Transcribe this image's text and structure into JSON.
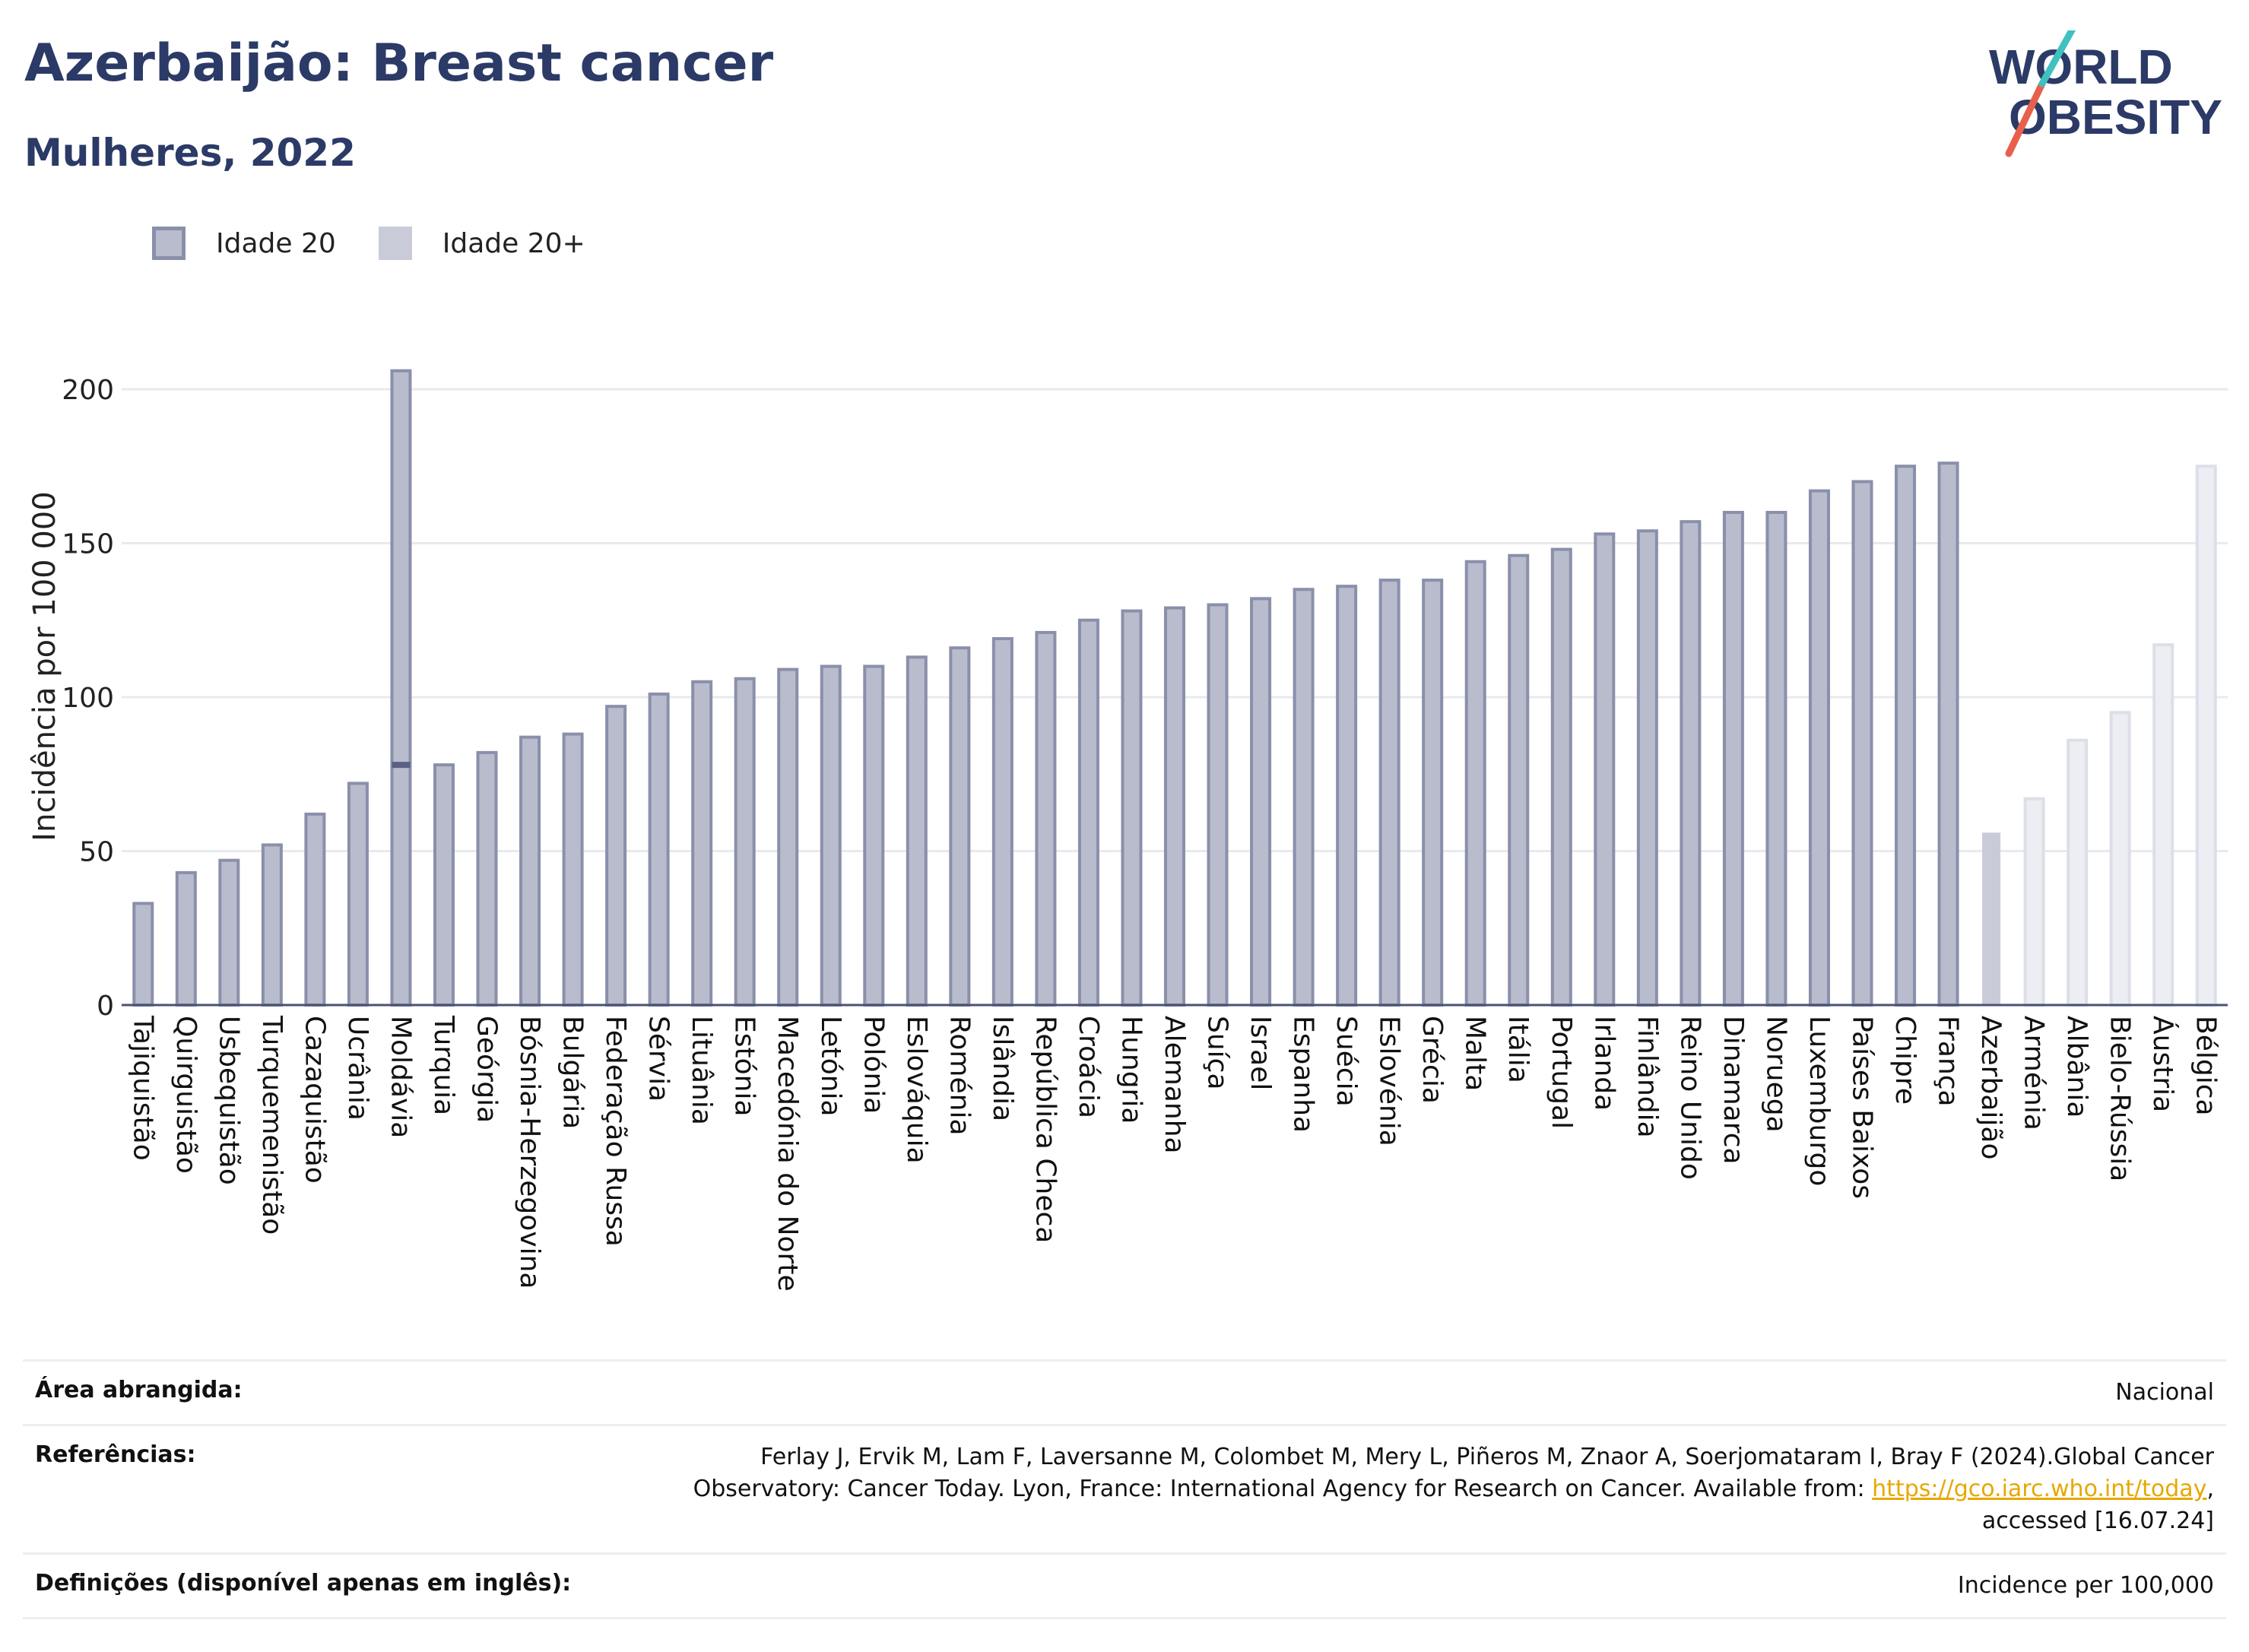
{
  "header": {
    "title": "Azerbaijão: Breast cancer",
    "subtitle": "Mulheres, 2022"
  },
  "logo": {
    "line1": "WORLD",
    "line2": "OBESITY",
    "slash_colors": [
      "#e8604c",
      "#3fc1c0"
    ],
    "text_color": "#2b3a66"
  },
  "legend": {
    "items": [
      {
        "label": "Idade 20"
      },
      {
        "label": "Idade 20+"
      }
    ]
  },
  "chart_data": {
    "type": "bar",
    "ylabel": "Incidência por 100 000",
    "xlabel": "",
    "ylim": [
      0,
      220
    ],
    "yticks": [
      0,
      50,
      100,
      150,
      200
    ],
    "grid": true,
    "categories": [
      "Tajiquistão",
      "Quirguistão",
      "Usbequistão",
      "Turquemenistão",
      "Cazaquistão",
      "Ucrânia",
      "Moldávia",
      "Turquia",
      "Geórgia",
      "Bósnia-Herzegovina",
      "Bulgária",
      "Federação Russa",
      "Sérvia",
      "Lituânia",
      "Estónia",
      "Macedónia do Norte",
      "Letónia",
      "Polónia",
      "Eslováquia",
      "Roménia",
      "Islândia",
      "República Checa",
      "Croácia",
      "Hungria",
      "Alemanha",
      "Suíça",
      "Israel",
      "Espanha",
      "Suécia",
      "Eslovénia",
      "Grécia",
      "Malta",
      "Itália",
      "Portugal",
      "Irlanda",
      "Finlândia",
      "Reino Unido",
      "Dinamarca",
      "Noruega",
      "Luxemburgo",
      "Países Baixos",
      "Chipre",
      "França",
      "Azerbaijão",
      "Arménia",
      "Albânia",
      "Bielo-Rússia",
      "Áustria",
      "Bélgica"
    ],
    "series": [
      {
        "name": "Idade 20",
        "values": [
          33,
          43,
          47,
          52,
          62,
          72,
          78,
          78,
          82,
          87,
          88,
          97,
          101,
          105,
          106,
          109,
          110,
          110,
          113,
          116,
          119,
          121,
          125,
          128,
          129,
          130,
          132,
          135,
          136,
          138,
          138,
          144,
          146,
          148,
          153,
          154,
          157,
          160,
          160,
          167,
          170,
          175,
          176,
          null,
          null,
          null,
          null,
          null,
          null
        ]
      },
      {
        "name": "Idade 20+",
        "values": [
          33,
          43,
          47,
          52,
          62,
          72,
          206,
          78,
          82,
          87,
          88,
          97,
          101,
          105,
          106,
          109,
          110,
          110,
          113,
          116,
          119,
          121,
          125,
          128,
          129,
          130,
          132,
          135,
          136,
          138,
          138,
          144,
          146,
          148,
          153,
          154,
          157,
          160,
          160,
          167,
          170,
          175,
          176,
          56,
          67,
          86,
          95,
          117,
          175
        ]
      }
    ],
    "highlight_category": "Azerbaijão",
    "colors": {
      "bar_fill": "#b9bccd",
      "bar_border": "#8a90aa",
      "highlight": "#c9ccd8",
      "faded": "#eceef3",
      "faded_border": "#dcdfe7",
      "axis": "#4a5275",
      "grid": "#e8eaf0"
    }
  },
  "footer": {
    "rows": [
      {
        "label": "Área abrangida:",
        "value": "Nacional"
      },
      {
        "label": "Referências:",
        "value_prefix": "Ferlay J, Ervik M, Lam F, Laversanne M, Colombet M, Mery L, Piñeros M, Znaor A, Soerjomataram I, Bray F (2024).Global Cancer Observatory: Cancer Today. Lyon, France: International Agency for Research on Cancer. Available from: ",
        "link": "https://gco.iarc.who.int/today",
        "value_suffix": ", accessed [16.07.24]"
      },
      {
        "label": "Definições (disponível apenas em inglês):",
        "value": "Incidence per 100,000"
      }
    ]
  }
}
